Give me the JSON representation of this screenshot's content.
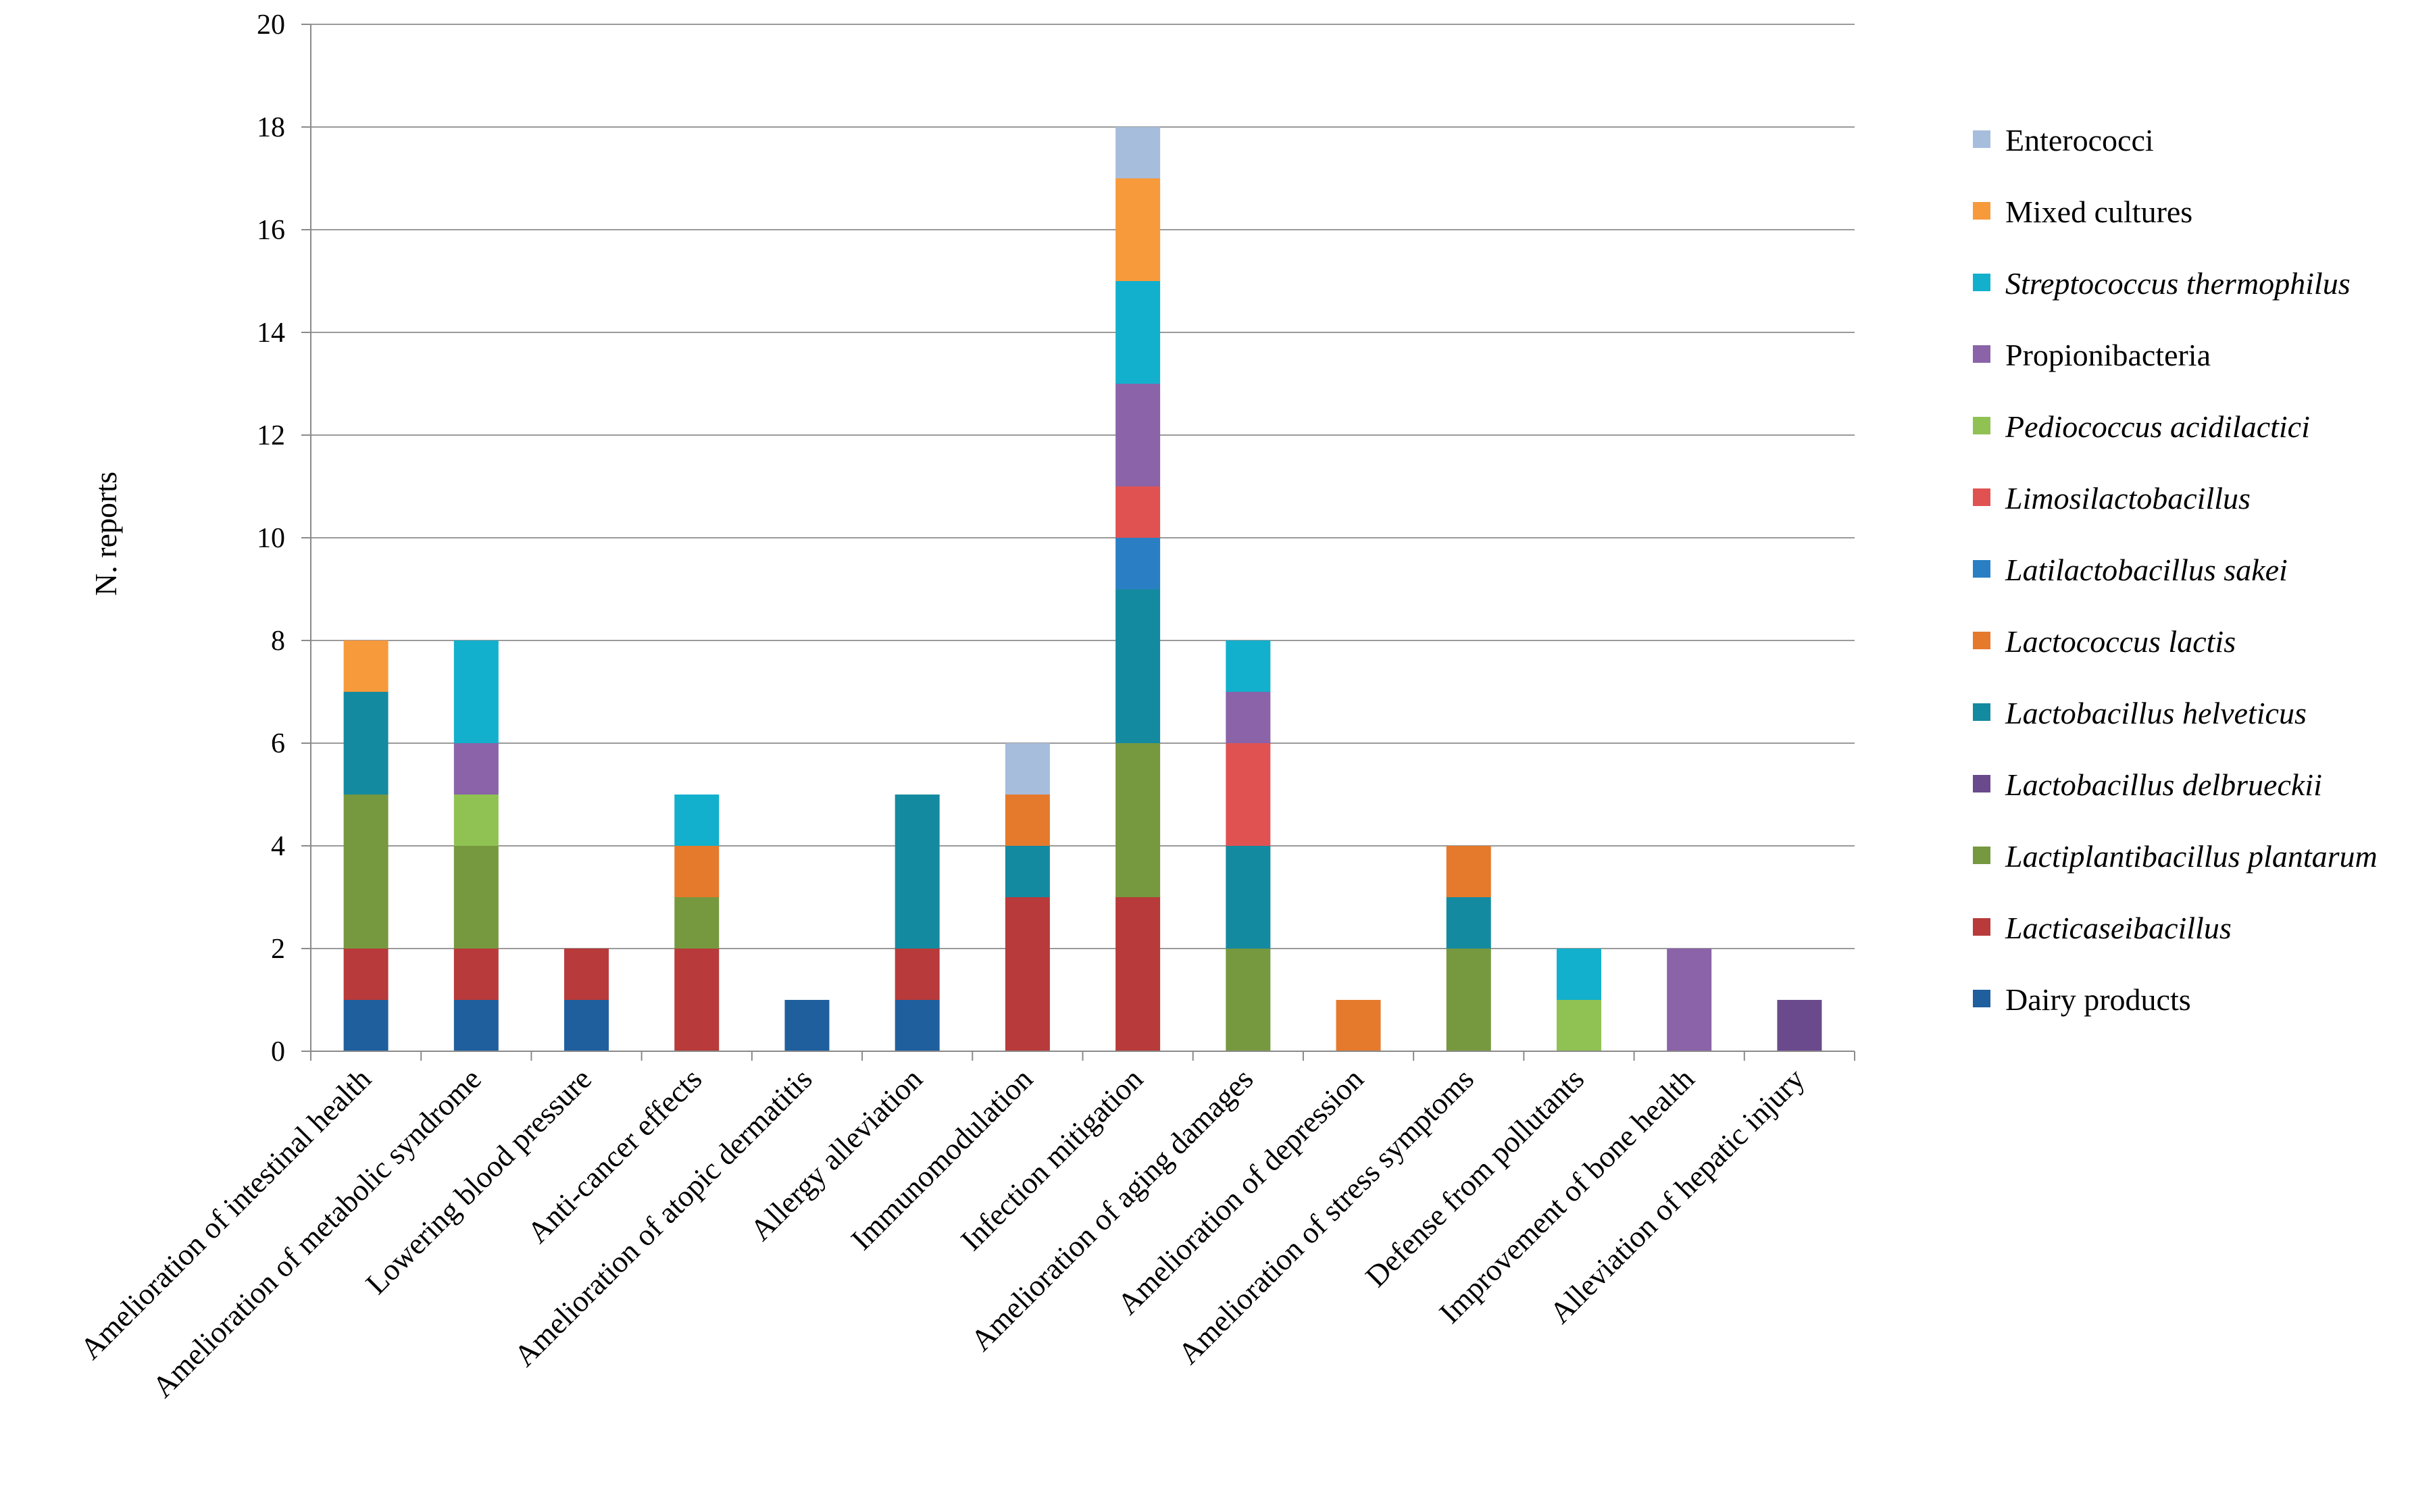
{
  "chart_data": {
    "type": "bar",
    "stacked": true,
    "title": "",
    "xlabel": "",
    "ylabel": "N. reports",
    "ylim": [
      0,
      20
    ],
    "yticks": [
      0,
      2,
      4,
      6,
      8,
      10,
      12,
      14,
      16,
      18,
      20
    ],
    "grid": true,
    "legend_position": "right",
    "categories": [
      "Amelioration of intestinal health",
      "Amelioration of metabolic syndrome",
      "Lowering blood pressure",
      "Anti-cancer effects",
      "Amelioration of atopic dermatitis",
      "Allergy alleviation",
      "Immunomodulation",
      "Infection mitigation",
      "Amelioration of aging damages",
      "Amelioration of depression",
      "Amelioration of stress symptoms",
      "Defense from pollutants",
      "Improvement of bone health",
      "Alleviation of hepatic injury"
    ],
    "series": [
      {
        "name": "Dairy products",
        "italic": false,
        "color": "#1f5f9e",
        "values": [
          1,
          1,
          1,
          0,
          1,
          1,
          0,
          0,
          0,
          0,
          0,
          0,
          0,
          0
        ]
      },
      {
        "name": "Lacticaseibacillus",
        "italic": true,
        "color": "#b83a3a",
        "values": [
          1,
          1,
          1,
          2,
          0,
          1,
          3,
          3,
          0,
          0,
          0,
          0,
          0,
          0
        ]
      },
      {
        "name": "Lactiplantibacillus plantarum",
        "italic": true,
        "color": "#76983f",
        "values": [
          3,
          2,
          0,
          1,
          0,
          0,
          0,
          3,
          2,
          0,
          2,
          0,
          0,
          0
        ]
      },
      {
        "name": "Lactobacillus delbrueckii",
        "italic": true,
        "color": "#6a4a8c",
        "values": [
          0,
          0,
          0,
          0,
          0,
          0,
          0,
          0,
          0,
          0,
          0,
          0,
          0,
          1
        ]
      },
      {
        "name": "Lactobacillus helveticus",
        "italic": true,
        "color": "#148aa0",
        "values": [
          2,
          0,
          0,
          0,
          0,
          3,
          1,
          3,
          2,
          0,
          1,
          0,
          0,
          0
        ]
      },
      {
        "name": "Lactococcus lactis",
        "italic": true,
        "color": "#e5792c",
        "values": [
          0,
          0,
          0,
          1,
          0,
          0,
          1,
          0,
          0,
          1,
          1,
          0,
          0,
          0
        ]
      },
      {
        "name": "Latilactobacillus sakei",
        "italic": true,
        "color": "#2a7fc4",
        "values": [
          0,
          0,
          0,
          0,
          0,
          0,
          0,
          1,
          0,
          0,
          0,
          0,
          0,
          0
        ]
      },
      {
        "name": "Limosilactobacillus",
        "italic": true,
        "color": "#e05252",
        "values": [
          0,
          0,
          0,
          0,
          0,
          0,
          0,
          1,
          2,
          0,
          0,
          0,
          0,
          0
        ]
      },
      {
        "name": "Pediococcus  acidilactici",
        "italic": true,
        "color": "#8fc252",
        "values": [
          0,
          1,
          0,
          0,
          0,
          0,
          0,
          0,
          0,
          0,
          0,
          1,
          0,
          0
        ]
      },
      {
        "name": "Propionibacteria",
        "italic": false,
        "color": "#8a63a8",
        "values": [
          0,
          1,
          0,
          0,
          0,
          0,
          0,
          2,
          1,
          0,
          0,
          0,
          2,
          0
        ]
      },
      {
        "name": "Streptococcus thermophilus",
        "italic": true,
        "color": "#12b0cc",
        "values": [
          0,
          2,
          0,
          1,
          0,
          0,
          0,
          2,
          1,
          0,
          0,
          1,
          0,
          0
        ]
      },
      {
        "name": "Mixed cultures",
        "italic": false,
        "color": "#f79a3c",
        "values": [
          1,
          0,
          0,
          0,
          0,
          0,
          0,
          2,
          0,
          0,
          0,
          0,
          0,
          0
        ]
      },
      {
        "name": "Enterococci",
        "italic": false,
        "color": "#a7bddc",
        "values": [
          0,
          0,
          0,
          0,
          0,
          0,
          1,
          1,
          0,
          0,
          0,
          0,
          0,
          0
        ]
      }
    ]
  }
}
